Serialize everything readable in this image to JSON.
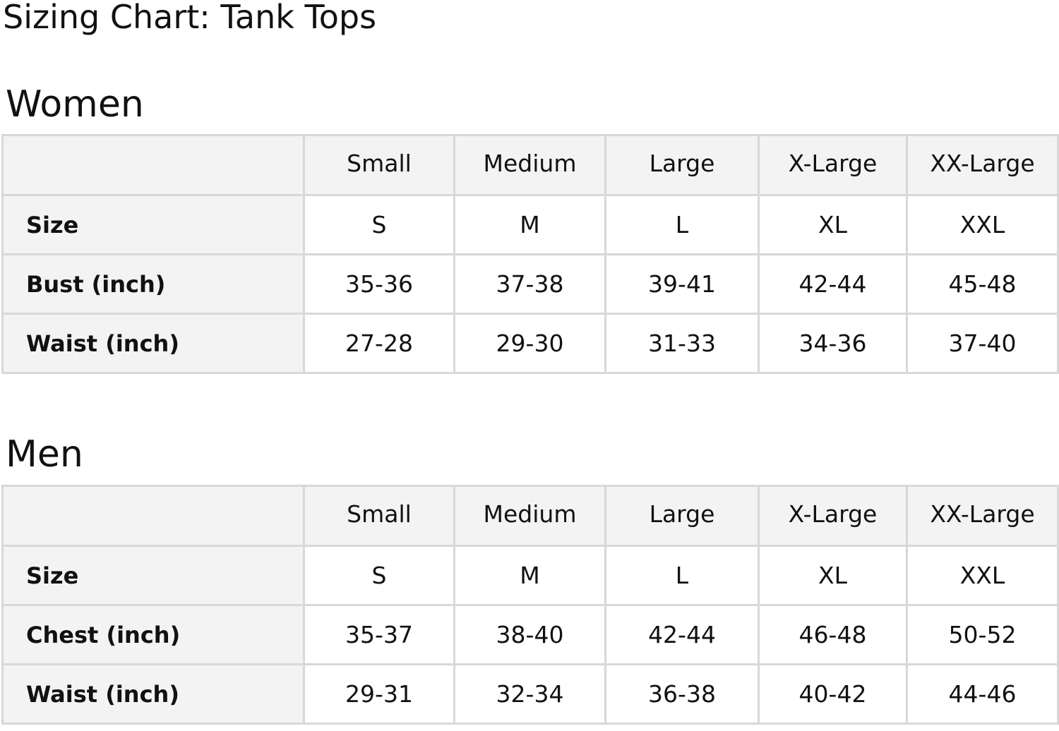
{
  "title": "Sizing Chart: Tank Tops",
  "sections": [
    {
      "name": "Women",
      "columns": [
        "Small",
        "Medium",
        "Large",
        "X-Large",
        "XX-Large"
      ],
      "rows": [
        {
          "label": "Size",
          "values": [
            "S",
            "M",
            "L",
            "XL",
            "XXL"
          ]
        },
        {
          "label": "Bust (inch)",
          "values": [
            "35-36",
            "37-38",
            "39-41",
            "42-44",
            "45-48"
          ]
        },
        {
          "label": "Waist (inch)",
          "values": [
            "27-28",
            "29-30",
            "31-33",
            "34-36",
            "37-40"
          ]
        }
      ]
    },
    {
      "name": "Men",
      "columns": [
        "Small",
        "Medium",
        "Large",
        "X-Large",
        "XX-Large"
      ],
      "rows": [
        {
          "label": "Size",
          "values": [
            "S",
            "M",
            "L",
            "XL",
            "XXL"
          ]
        },
        {
          "label": "Chest (inch)",
          "values": [
            "35-37",
            "38-40",
            "42-44",
            "46-48",
            "50-52"
          ]
        },
        {
          "label": "Waist (inch)",
          "values": [
            "29-31",
            "32-34",
            "36-38",
            "40-42",
            "44-46"
          ]
        }
      ]
    }
  ]
}
